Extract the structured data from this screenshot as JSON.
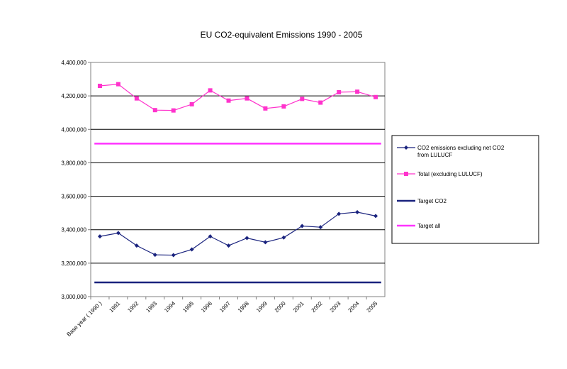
{
  "chart_data": {
    "type": "line",
    "title": "EU CO2-equivalent Emissions 1990 - 2005",
    "xlabel": "",
    "ylabel": "",
    "categories": [
      "Base year ( 1990 )",
      "1991",
      "1992",
      "1993",
      "1994",
      "1995",
      "1996",
      "1997",
      "1998",
      "1999",
      "2000",
      "2001",
      "2002",
      "2003",
      "2004",
      "2005"
    ],
    "ylim": [
      3000000,
      4400000
    ],
    "yticks": [
      3000000,
      3200000,
      3400000,
      3600000,
      3800000,
      4000000,
      4200000,
      4400000
    ],
    "ytick_labels": [
      "3,000,000",
      "3,200,000",
      "3,400,000",
      "3,600,000",
      "3,800,000",
      "4,000,000",
      "4,200,000",
      "4,400,000"
    ],
    "grid": true,
    "legend_position": "right",
    "series": [
      {
        "name": "CO2 emissions excluding net CO2 from LULUCF",
        "color": "#1a237e",
        "marker": "diamond",
        "values": [
          3360000,
          3380000,
          3305000,
          3250000,
          3248000,
          3282000,
          3360000,
          3305000,
          3350000,
          3325000,
          3353000,
          3422000,
          3415000,
          3495000,
          3505000,
          3482000
        ]
      },
      {
        "name": "Total (excluding LULUCF)",
        "color": "#ff33cc",
        "marker": "square",
        "values": [
          4260000,
          4270000,
          4185000,
          4115000,
          4113000,
          4150000,
          4233000,
          4172000,
          4185000,
          4125000,
          4137000,
          4182000,
          4160000,
          4222000,
          4225000,
          4193000
        ]
      },
      {
        "name": "Target CO2",
        "color": "#1a237e",
        "marker": "none",
        "constant": 3085000
      },
      {
        "name": "Target all",
        "color": "#ff33ff",
        "marker": "none",
        "constant": 3915000
      }
    ]
  }
}
